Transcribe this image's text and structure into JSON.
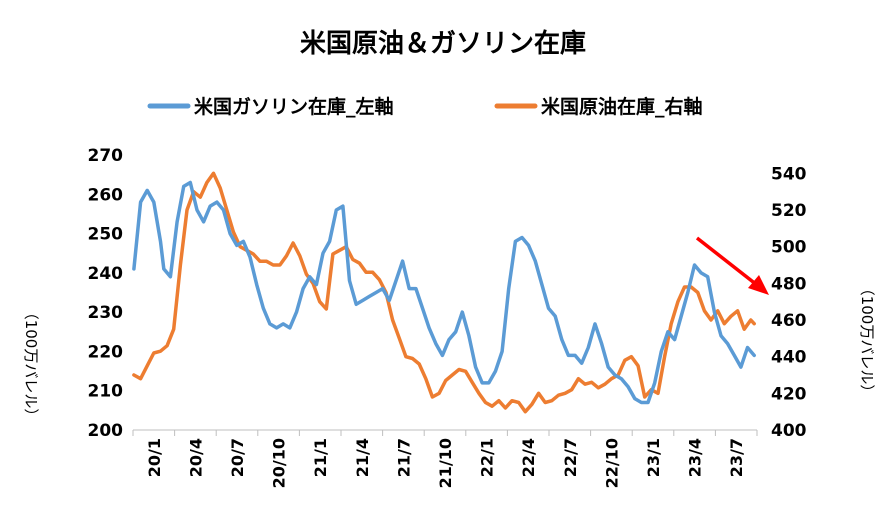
{
  "chart_data": {
    "type": "line",
    "title": "米国原油＆ガソリン在庫",
    "ylabel_left": "（100万バレル）",
    "ylabel_right": "（100万バレル）",
    "ylim_left": [
      200,
      270
    ],
    "yticks_left": [
      200,
      210,
      220,
      230,
      240,
      250,
      260,
      270
    ],
    "ylim_right": [
      400,
      550
    ],
    "yticks_right": [
      400,
      420,
      440,
      460,
      480,
      500,
      520,
      540
    ],
    "x_tick_labels": [
      "20/1",
      "20/4",
      "20/7",
      "20/10",
      "21/1",
      "21/4",
      "21/7",
      "21/10",
      "22/1",
      "22/4",
      "22/7",
      "22/10",
      "23/1",
      "23/4",
      "23/7"
    ],
    "grid": false,
    "legend_position": "top",
    "annotation": "red arrow pointing down-right at end of series",
    "series": [
      {
        "name": "米国ガソリン在庫_左軸",
        "axis": "left",
        "color": "#5B9BD5",
        "x": [
          "2020-01-03",
          "2020-01-17",
          "2020-01-31",
          "2020-02-14",
          "2020-02-28",
          "2020-03-06",
          "2020-03-20",
          "2020-04-03",
          "2020-04-17",
          "2020-05-01",
          "2020-05-15",
          "2020-05-29",
          "2020-06-12",
          "2020-06-26",
          "2020-07-10",
          "2020-07-24",
          "2020-08-07",
          "2020-08-21",
          "2020-09-04",
          "2020-09-18",
          "2020-10-02",
          "2020-10-16",
          "2020-10-30",
          "2020-11-13",
          "2020-11-27",
          "2020-12-11",
          "2020-12-25",
          "2021-01-08",
          "2021-01-22",
          "2021-02-05",
          "2021-02-19",
          "2021-03-05",
          "2021-03-19",
          "2021-04-02",
          "2021-04-16",
          "2021-04-30",
          "2021-05-14",
          "2021-05-28",
          "2021-06-11",
          "2021-06-25",
          "2021-07-09",
          "2021-07-23",
          "2021-08-06",
          "2021-08-20",
          "2021-09-03",
          "2021-09-17",
          "2021-10-01",
          "2021-10-15",
          "2021-10-29",
          "2021-11-12",
          "2021-11-26",
          "2021-12-10",
          "2021-12-24",
          "2022-01-07",
          "2022-01-21",
          "2022-02-04",
          "2022-02-18",
          "2022-03-04",
          "2022-03-18",
          "2022-04-01",
          "2022-04-15",
          "2022-04-29",
          "2022-05-13",
          "2022-05-27",
          "2022-06-10",
          "2022-06-24",
          "2022-07-08",
          "2022-07-22",
          "2022-08-05",
          "2022-08-19",
          "2022-09-02",
          "2022-09-16",
          "2022-09-30",
          "2022-10-14",
          "2022-10-28",
          "2022-11-11",
          "2022-11-25",
          "2022-12-09",
          "2022-12-23",
          "2023-01-06",
          "2023-01-20",
          "2023-02-03",
          "2023-02-17",
          "2023-03-03",
          "2023-03-17",
          "2023-03-31",
          "2023-04-14",
          "2023-04-28",
          "2023-05-12",
          "2023-05-26",
          "2023-06-09",
          "2023-06-23",
          "2023-07-07",
          "2023-07-21",
          "2023-08-04"
        ],
        "values": [
          241,
          258,
          261,
          258,
          248,
          241,
          239,
          253,
          262,
          263,
          256,
          253,
          257,
          258,
          256,
          250,
          247,
          248,
          244,
          237,
          231,
          227,
          226,
          227,
          226,
          230,
          236,
          239,
          237,
          245,
          248,
          256,
          257,
          238,
          232,
          233,
          234,
          235,
          236,
          233,
          238,
          243,
          236,
          236,
          231,
          226,
          222,
          219,
          223,
          225,
          230,
          224,
          216,
          212,
          212,
          215,
          220,
          236,
          248,
          249,
          247,
          243,
          237,
          231,
          229,
          223,
          219,
          219,
          217,
          221,
          227,
          222,
          216,
          214,
          213,
          211,
          208,
          207,
          207,
          212,
          220,
          225,
          223,
          229,
          235,
          242,
          240,
          239,
          230,
          224,
          222,
          219,
          216,
          221,
          219
        ]
      },
      {
        "name": "米国原油在庫_右軸",
        "axis": "right",
        "color": "#ED7D31",
        "x": [
          "2020-01-03",
          "2020-01-17",
          "2020-01-31",
          "2020-02-14",
          "2020-02-28",
          "2020-03-13",
          "2020-03-27",
          "2020-04-10",
          "2020-04-24",
          "2020-05-08",
          "2020-05-22",
          "2020-06-05",
          "2020-06-19",
          "2020-07-03",
          "2020-07-17",
          "2020-07-31",
          "2020-08-14",
          "2020-08-28",
          "2020-09-11",
          "2020-09-25",
          "2020-10-09",
          "2020-10-23",
          "2020-11-06",
          "2020-11-20",
          "2020-12-04",
          "2020-12-18",
          "2021-01-01",
          "2021-01-15",
          "2021-01-29",
          "2021-02-12",
          "2021-02-26",
          "2021-03-12",
          "2021-03-26",
          "2021-04-09",
          "2021-04-23",
          "2021-05-07",
          "2021-05-21",
          "2021-06-04",
          "2021-06-18",
          "2021-07-02",
          "2021-07-16",
          "2021-07-30",
          "2021-08-13",
          "2021-08-27",
          "2021-09-10",
          "2021-09-24",
          "2021-10-08",
          "2021-10-22",
          "2021-11-05",
          "2021-11-19",
          "2021-12-03",
          "2021-12-17",
          "2021-12-31",
          "2022-01-14",
          "2022-01-28",
          "2022-02-11",
          "2022-02-25",
          "2022-03-11",
          "2022-03-25",
          "2022-04-08",
          "2022-04-22",
          "2022-05-06",
          "2022-05-20",
          "2022-06-03",
          "2022-06-17",
          "2022-07-01",
          "2022-07-15",
          "2022-07-29",
          "2022-08-12",
          "2022-08-26",
          "2022-09-09",
          "2022-09-23",
          "2022-10-07",
          "2022-10-21",
          "2022-11-04",
          "2022-11-18",
          "2022-12-02",
          "2022-12-16",
          "2022-12-30",
          "2023-01-13",
          "2023-01-27",
          "2023-02-10",
          "2023-02-24",
          "2023-03-10",
          "2023-03-24",
          "2023-04-07",
          "2023-04-21",
          "2023-05-05",
          "2023-05-19",
          "2023-06-02",
          "2023-06-16",
          "2023-06-30",
          "2023-07-14",
          "2023-07-28",
          "2023-08-04"
        ],
        "values": [
          430,
          428,
          435,
          442,
          443,
          446,
          455,
          490,
          520,
          530,
          527,
          535,
          540,
          532,
          520,
          508,
          500,
          498,
          496,
          492,
          492,
          490,
          490,
          495,
          502,
          495,
          485,
          480,
          470,
          466,
          496,
          498,
          500,
          493,
          491,
          486,
          486,
          482,
          475,
          460,
          450,
          440,
          439,
          436,
          428,
          418,
          420,
          427,
          430,
          433,
          432,
          426,
          420,
          415,
          413,
          416,
          412,
          416,
          415,
          410,
          414,
          420,
          415,
          416,
          419,
          420,
          422,
          428,
          425,
          426,
          423,
          425,
          428,
          430,
          438,
          440,
          435,
          418,
          422,
          420,
          440,
          458,
          470,
          478,
          478,
          475,
          465,
          460,
          465,
          458,
          462,
          465,
          455,
          460,
          458
        ]
      }
    ]
  }
}
